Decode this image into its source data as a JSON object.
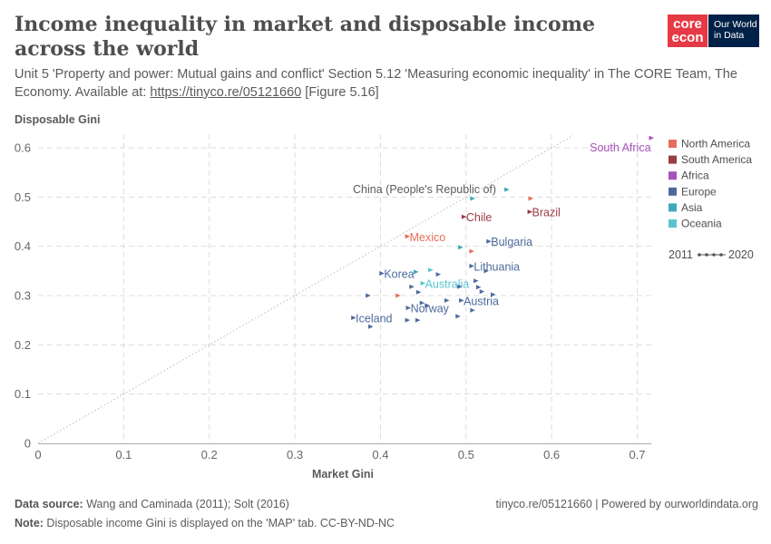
{
  "header": {
    "title": "Income inequality in market and disposable income across the world",
    "subtitle_text": "Unit 5 'Property and power: Mutual gains and conflict' Section 5.12 'Measuring economic inequality' in The CORE Team, The Economy. Available at: ",
    "subtitle_link": "https://tinyco.re/05121660",
    "subtitle_suffix": " [Figure 5.16]"
  },
  "logos": {
    "core_line1": "core",
    "core_line2": "econ",
    "owid_line1": "Our World",
    "owid_line2": "in Data"
  },
  "footer": {
    "source_label": "Data source:",
    "source_text": " Wang and Caminada (2011); Solt (2016)",
    "note_label": "Note:",
    "note_text": " Disposable income Gini is displayed on the 'MAP' tab. CC-BY-ND-NC",
    "right_text": "tinyco.re/05121660 | Powered by ourworldindata.org"
  },
  "chart_data": {
    "type": "scatter",
    "ylabel": "Disposable Gini",
    "xlabel": "Market Gini",
    "xlim": [
      0,
      0.72
    ],
    "ylim": [
      0,
      0.62
    ],
    "x_ticks": [
      0,
      0.1,
      0.2,
      0.3,
      0.4,
      0.5,
      0.6,
      0.7
    ],
    "x_tick_labels": [
      "0",
      "0.1",
      "0.2",
      "0.3",
      "0.4",
      "0.5",
      "0.6",
      "0.7"
    ],
    "y_ticks": [
      0,
      0.1,
      0.2,
      0.3,
      0.4,
      0.5,
      0.6
    ],
    "y_tick_labels": [
      "0",
      "0.1",
      "0.2",
      "0.3",
      "0.4",
      "0.5",
      "0.6"
    ],
    "grid": true,
    "reference_line": "y = x (dotted)",
    "legend_position": "right",
    "legend": [
      {
        "name": "North America",
        "color": "#e56e5a"
      },
      {
        "name": "South America",
        "color": "#9a3c43"
      },
      {
        "name": "Africa",
        "color": "#a652ba"
      },
      {
        "name": "Europe",
        "color": "#4c6a9c"
      },
      {
        "name": "Asia",
        "color": "#38aaba"
      },
      {
        "name": "Oceania",
        "color": "#58c4d1"
      }
    ],
    "timeline": {
      "start": "2011",
      "end": "2020"
    },
    "points": [
      {
        "name": "South Africa",
        "x": 0.717,
        "y": 0.62,
        "region": "Africa",
        "label": true
      },
      {
        "name": "China (People's Republic of)",
        "x": 0.548,
        "y": 0.515,
        "region": "Asia",
        "label": true,
        "label_color": "#5b5b5b"
      },
      {
        "name": "",
        "x": 0.508,
        "y": 0.497,
        "region": "Asia",
        "label": false
      },
      {
        "name": "Brazil",
        "x": 0.575,
        "y": 0.47,
        "region": "South America",
        "label": true
      },
      {
        "name": "",
        "x": 0.576,
        "y": 0.497,
        "region": "North America",
        "label": false
      },
      {
        "name": "Chile",
        "x": 0.498,
        "y": 0.46,
        "region": "South America",
        "label": true
      },
      {
        "name": "Mexico",
        "x": 0.432,
        "y": 0.42,
        "region": "North America",
        "label": true
      },
      {
        "name": "Bulgaria",
        "x": 0.527,
        "y": 0.41,
        "region": "Europe",
        "label": true
      },
      {
        "name": "",
        "x": 0.494,
        "y": 0.398,
        "region": "Asia",
        "label": false
      },
      {
        "name": "",
        "x": 0.507,
        "y": 0.39,
        "region": "North America",
        "label": false
      },
      {
        "name": "Lithuania",
        "x": 0.507,
        "y": 0.36,
        "region": "Europe",
        "label": true
      },
      {
        "name": "",
        "x": 0.524,
        "y": 0.35,
        "region": "Europe",
        "label": false
      },
      {
        "name": "Korea",
        "x": 0.402,
        "y": 0.345,
        "region": "Europe",
        "label": true
      },
      {
        "name": "",
        "x": 0.442,
        "y": 0.348,
        "region": "Asia",
        "label": false
      },
      {
        "name": "",
        "x": 0.459,
        "y": 0.352,
        "region": "Oceania",
        "label": false
      },
      {
        "name": "",
        "x": 0.468,
        "y": 0.343,
        "region": "Europe",
        "label": false
      },
      {
        "name": "Australia",
        "x": 0.45,
        "y": 0.325,
        "region": "Oceania",
        "label": true
      },
      {
        "name": "",
        "x": 0.512,
        "y": 0.33,
        "region": "Europe",
        "label": false
      },
      {
        "name": "",
        "x": 0.493,
        "y": 0.318,
        "region": "Europe",
        "label": false
      },
      {
        "name": "",
        "x": 0.515,
        "y": 0.317,
        "region": "Europe",
        "label": false
      },
      {
        "name": "",
        "x": 0.519,
        "y": 0.308,
        "region": "Europe",
        "label": false
      },
      {
        "name": "",
        "x": 0.532,
        "y": 0.302,
        "region": "Europe",
        "label": false
      },
      {
        "name": "",
        "x": 0.437,
        "y": 0.318,
        "region": "Europe",
        "label": false
      },
      {
        "name": "",
        "x": 0.445,
        "y": 0.307,
        "region": "Europe",
        "label": false
      },
      {
        "name": "",
        "x": 0.386,
        "y": 0.3,
        "region": "Europe",
        "label": false
      },
      {
        "name": "",
        "x": 0.421,
        "y": 0.3,
        "region": "North America",
        "label": false
      },
      {
        "name": "Austria",
        "x": 0.495,
        "y": 0.29,
        "region": "Europe",
        "label": true
      },
      {
        "name": "",
        "x": 0.478,
        "y": 0.29,
        "region": "Europe",
        "label": false
      },
      {
        "name": "",
        "x": 0.449,
        "y": 0.285,
        "region": "Europe",
        "label": false
      },
      {
        "name": "",
        "x": 0.455,
        "y": 0.28,
        "region": "Europe",
        "label": false
      },
      {
        "name": "Norway",
        "x": 0.433,
        "y": 0.275,
        "region": "Europe",
        "label": true
      },
      {
        "name": "",
        "x": 0.508,
        "y": 0.27,
        "region": "Europe",
        "label": false
      },
      {
        "name": "",
        "x": 0.491,
        "y": 0.258,
        "region": "Europe",
        "label": false
      },
      {
        "name": "Iceland",
        "x": 0.369,
        "y": 0.255,
        "region": "Europe",
        "label": true
      },
      {
        "name": "",
        "x": 0.432,
        "y": 0.25,
        "region": "Europe",
        "label": false
      },
      {
        "name": "",
        "x": 0.444,
        "y": 0.25,
        "region": "Europe",
        "label": false
      },
      {
        "name": "",
        "x": 0.389,
        "y": 0.237,
        "region": "Europe",
        "label": false
      }
    ]
  }
}
